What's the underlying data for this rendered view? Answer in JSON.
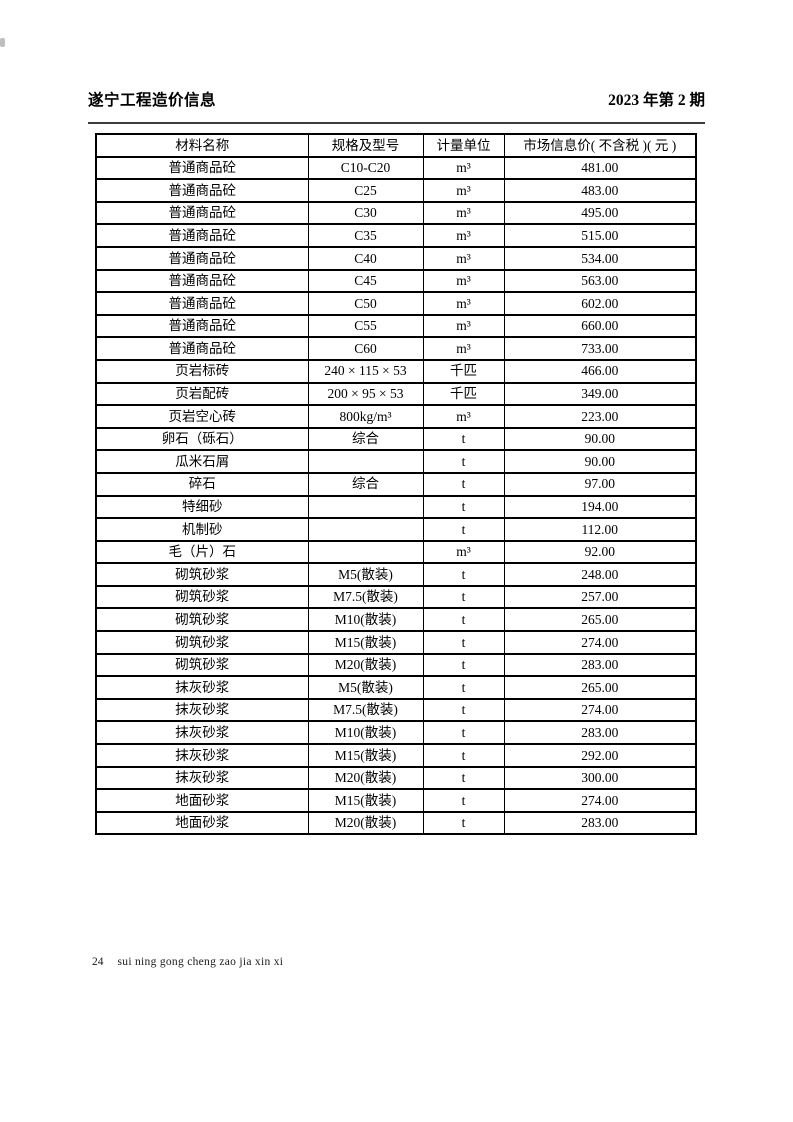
{
  "header": {
    "title": "遂宁工程造价信息",
    "issue": "2023 年第 2 期"
  },
  "table": {
    "columns": [
      "材料名称",
      "规格及型号",
      "计量单位",
      "市场信息价( 不含税 )( 元 )"
    ],
    "rows": [
      [
        "普通商品砼",
        "C10-C20",
        "m³",
        "481.00"
      ],
      [
        "普通商品砼",
        "C25",
        "m³",
        "483.00"
      ],
      [
        "普通商品砼",
        "C30",
        "m³",
        "495.00"
      ],
      [
        "普通商品砼",
        "C35",
        "m³",
        "515.00"
      ],
      [
        "普通商品砼",
        "C40",
        "m³",
        "534.00"
      ],
      [
        "普通商品砼",
        "C45",
        "m³",
        "563.00"
      ],
      [
        "普通商品砼",
        "C50",
        "m³",
        "602.00"
      ],
      [
        "普通商品砼",
        "C55",
        "m³",
        "660.00"
      ],
      [
        "普通商品砼",
        "C60",
        "m³",
        "733.00"
      ],
      [
        "页岩标砖",
        "240 × 115 × 53",
        "千匹",
        "466.00"
      ],
      [
        "页岩配砖",
        "200 × 95 × 53",
        "千匹",
        "349.00"
      ],
      [
        "页岩空心砖",
        "800kg/m³",
        "m³",
        "223.00"
      ],
      [
        "卵石（砾石）",
        "综合",
        "t",
        "90.00"
      ],
      [
        "瓜米石屑",
        "",
        "t",
        "90.00"
      ],
      [
        "碎石",
        "综合",
        "t",
        "97.00"
      ],
      [
        "特细砂",
        "",
        "t",
        "194.00"
      ],
      [
        "机制砂",
        "",
        "t",
        "112.00"
      ],
      [
        "毛（片）石",
        "",
        "m³",
        "92.00"
      ],
      [
        "砌筑砂浆",
        "M5(散装)",
        "t",
        "248.00"
      ],
      [
        "砌筑砂浆",
        "M7.5(散装)",
        "t",
        "257.00"
      ],
      [
        "砌筑砂浆",
        "M10(散装)",
        "t",
        "265.00"
      ],
      [
        "砌筑砂浆",
        "M15(散装)",
        "t",
        "274.00"
      ],
      [
        "砌筑砂浆",
        "M20(散装)",
        "t",
        "283.00"
      ],
      [
        "抹灰砂浆",
        "M5(散装)",
        "t",
        "265.00"
      ],
      [
        "抹灰砂浆",
        "M7.5(散装)",
        "t",
        "274.00"
      ],
      [
        "抹灰砂浆",
        "M10(散装)",
        "t",
        "283.00"
      ],
      [
        "抹灰砂浆",
        "M15(散装)",
        "t",
        "292.00"
      ],
      [
        "抹灰砂浆",
        "M20(散装)",
        "t",
        "300.00"
      ],
      [
        "地面砂浆",
        "M15(散装)",
        "t",
        "274.00"
      ],
      [
        "地面砂浆",
        "M20(散装)",
        "t",
        "283.00"
      ]
    ]
  },
  "footer": {
    "page_number": "24",
    "pinyin": "sui ning gong cheng zao jia xin xi"
  },
  "colors": {
    "text": "#000000",
    "border": "#000000",
    "rule": "#3c3c3c",
    "background": "#ffffff"
  }
}
